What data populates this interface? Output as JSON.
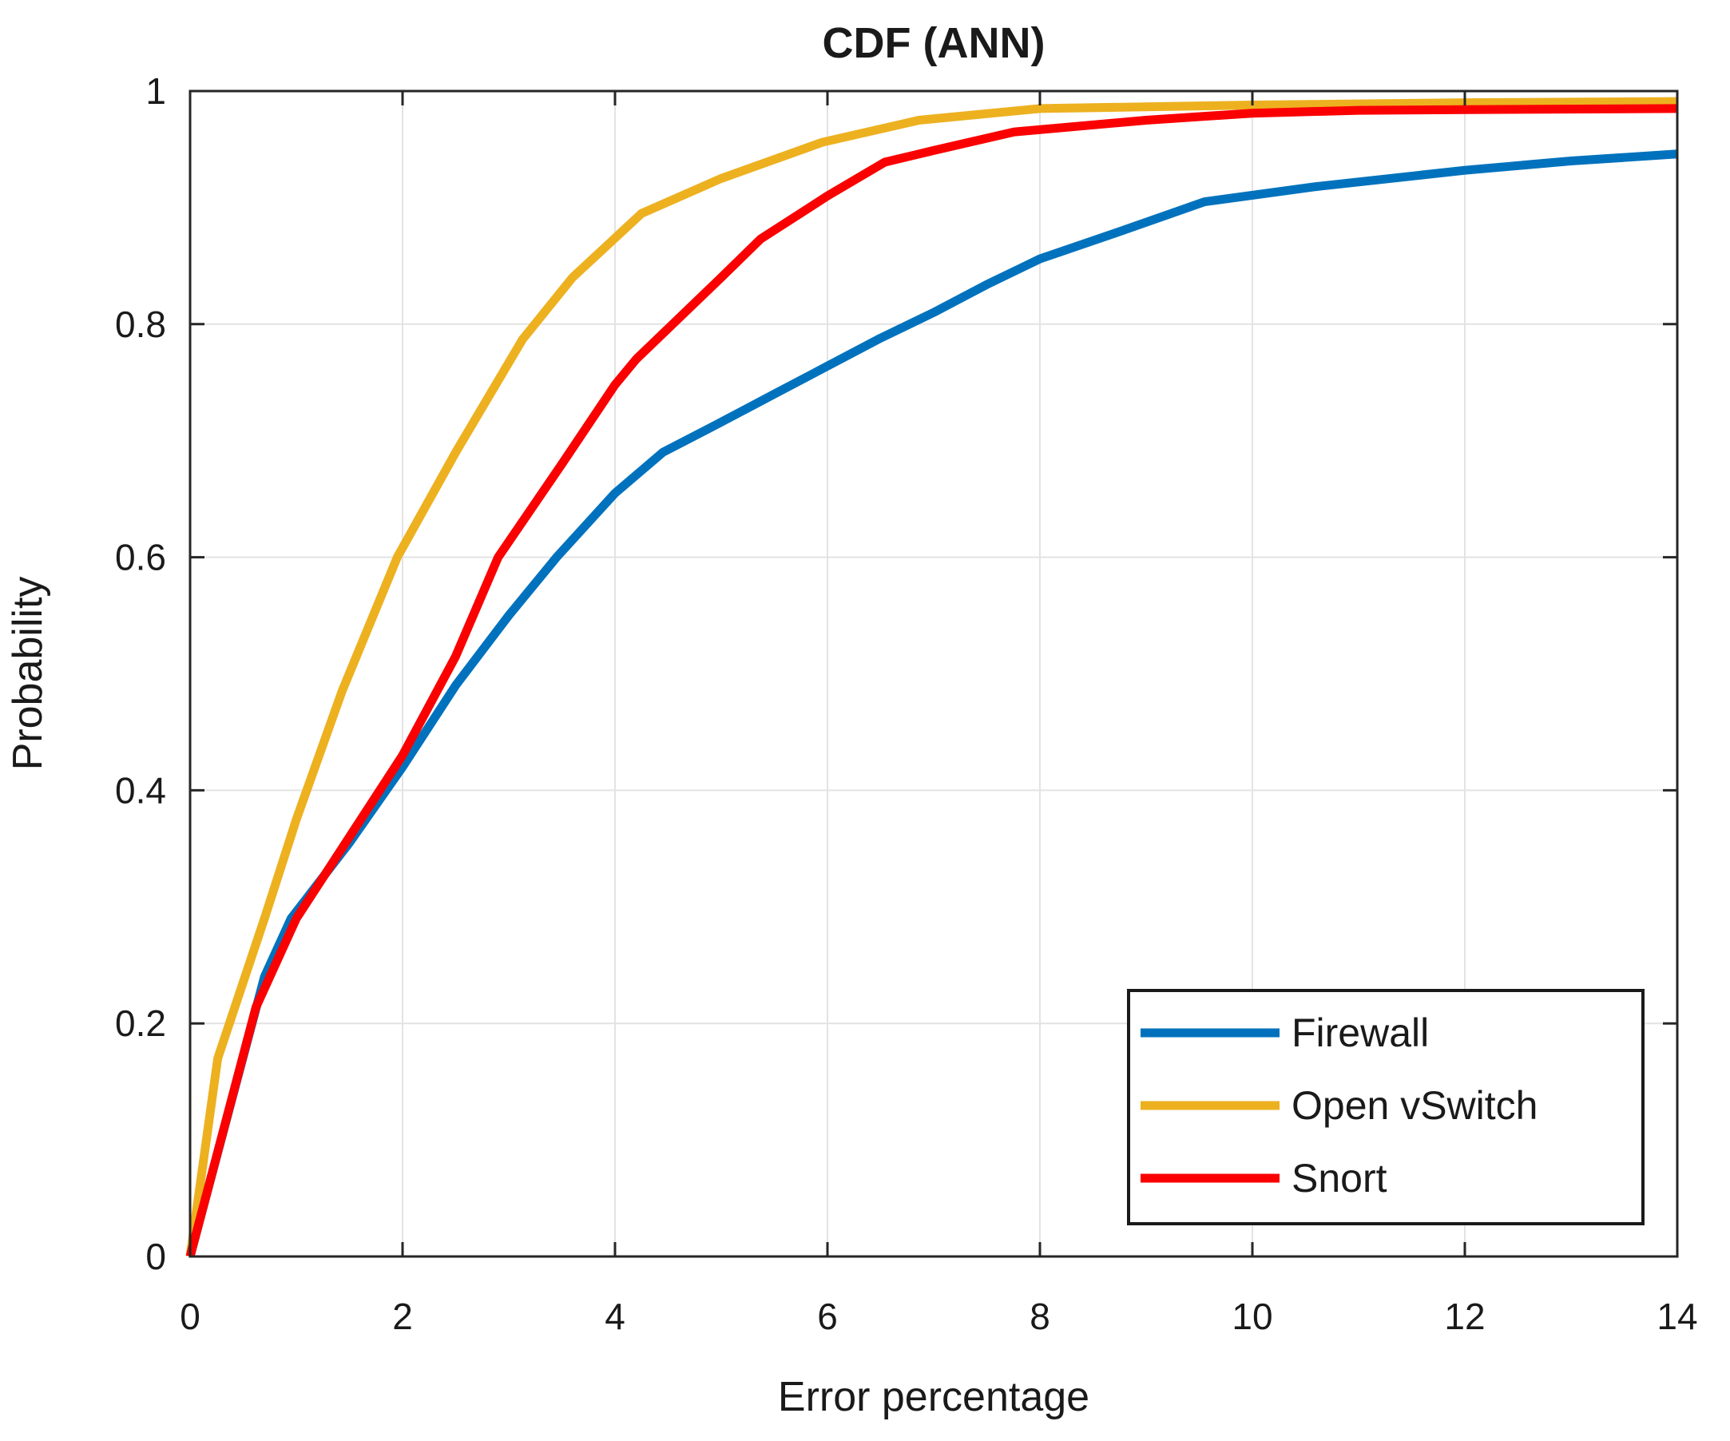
{
  "chart_data": {
    "type": "line",
    "title": "CDF (ANN)",
    "xlabel": "Error percentage",
    "ylabel": "Probability",
    "xlim": [
      0,
      14
    ],
    "ylim": [
      0,
      1
    ],
    "xticks": [
      0,
      2,
      4,
      6,
      8,
      10,
      12,
      14
    ],
    "xtick_labels": [
      "0",
      "2",
      "4",
      "6",
      "8",
      "10",
      "12",
      "14"
    ],
    "yticks": [
      0,
      0.2,
      0.4,
      0.6,
      0.8,
      1
    ],
    "ytick_labels": [
      "0",
      "0.2",
      "0.4",
      "0.6",
      "0.8",
      "1"
    ],
    "grid": true,
    "grid_color": "#e3e3e3",
    "axis_color": "#262626",
    "background": "#ffffff",
    "legend_position": "lower right",
    "series": [
      {
        "name": "Firewall",
        "color": "#0072BD",
        "x": [
          0,
          0.7,
          0.95,
          1.5,
          2,
          2.5,
          3,
          3.45,
          4,
          4.45,
          5,
          5.5,
          6,
          6.5,
          7,
          7.5,
          8,
          8.8,
          9.55,
          10.6,
          12,
          13,
          14
        ],
        "y": [
          0,
          0.24,
          0.29,
          0.355,
          0.42,
          0.49,
          0.55,
          0.6,
          0.655,
          0.69,
          0.716,
          0.74,
          0.764,
          0.788,
          0.81,
          0.834,
          0.856,
          0.881,
          0.905,
          0.918,
          0.932,
          0.94,
          0.946
        ]
      },
      {
        "name": "Open vSwitch",
        "color": "#EDB120",
        "x": [
          0,
          0.26,
          0.7,
          1,
          1.43,
          1.95,
          2.5,
          3.13,
          3.6,
          4.25,
          5,
          5.95,
          6.86,
          8,
          10,
          12,
          14
        ],
        "y": [
          0,
          0.17,
          0.29,
          0.375,
          0.485,
          0.6,
          0.69,
          0.787,
          0.84,
          0.895,
          0.925,
          0.956,
          0.975,
          0.985,
          0.988,
          0.99,
          0.991
        ]
      },
      {
        "name": "Snort",
        "color": "#FA0000",
        "x": [
          0,
          0.62,
          1,
          1.5,
          2,
          2.5,
          2.9,
          3.5,
          4,
          4.2,
          5,
          5.37,
          6,
          6.54,
          7,
          7.76,
          9,
          10,
          11,
          12,
          14
        ],
        "y": [
          0,
          0.214,
          0.29,
          0.36,
          0.43,
          0.515,
          0.6,
          0.68,
          0.748,
          0.77,
          0.84,
          0.873,
          0.91,
          0.939,
          0.949,
          0.965,
          0.975,
          0.981,
          0.9835,
          0.984,
          0.985
        ]
      }
    ]
  }
}
